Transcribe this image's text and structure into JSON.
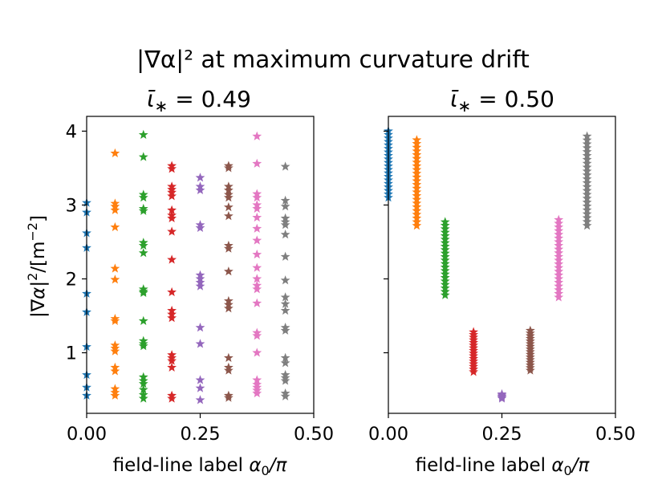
{
  "figure": {
    "suptitle": "|∇α|² at maximum curvature drift"
  },
  "chart_data": [
    {
      "type": "scatter",
      "marker": "star",
      "title": "ῑ* = 0.49",
      "title_parts": {
        "iota": "ῑ",
        "star": "∗",
        "rest": " = 0.49"
      },
      "xlabel": "field-line label α₀/π",
      "xlabel_parts": {
        "text": "field-line label ",
        "alpha": "α",
        "sub": "0",
        "tail": "/π"
      },
      "ylabel": "|∇α|²/[m⁻²]",
      "xlim": [
        0.0,
        0.5
      ],
      "ylim": [
        0.18,
        4.2
      ],
      "xticks": [
        0.0,
        0.25,
        0.5
      ],
      "xtick_labels": [
        "0.00",
        "0.25",
        "0.50"
      ],
      "yticks": [
        1,
        2,
        3,
        4
      ],
      "ytick_labels": [
        "1",
        "2",
        "3",
        "4"
      ],
      "show_yticklabels": true,
      "series": [
        {
          "name": "α₀/π = 0.0000",
          "color": "#1f77b4",
          "x": 0.0,
          "y": [
            3.03,
            2.9,
            2.62,
            2.42,
            1.8,
            1.55,
            1.08,
            0.7,
            0.53,
            0.42
          ]
        },
        {
          "name": "α₀/π = 0.0625",
          "color": "#ff7f0e",
          "x": 0.0625,
          "y": [
            3.7,
            3.02,
            2.98,
            2.93,
            2.7,
            2.14,
            1.99,
            1.46,
            1.43,
            1.1,
            1.06,
            1.02,
            0.8,
            0.75,
            0.51,
            0.46,
            0.42
          ]
        },
        {
          "name": "α₀/π = 0.1250",
          "color": "#2ca02c",
          "x": 0.125,
          "y": [
            3.95,
            3.65,
            3.14,
            3.1,
            2.95,
            2.92,
            2.49,
            2.45,
            2.35,
            1.86,
            1.83,
            1.81,
            1.43,
            1.16,
            1.12,
            1.09,
            0.67,
            0.62,
            0.58,
            0.5,
            0.43,
            0.38
          ]
        },
        {
          "name": "α₀/π = 0.1875",
          "color": "#d62728",
          "x": 0.1875,
          "y": [
            3.53,
            3.49,
            3.25,
            3.21,
            3.17,
            3.12,
            2.93,
            2.86,
            2.82,
            2.64,
            2.26,
            1.82,
            1.57,
            1.52,
            1.47,
            0.97,
            0.93,
            0.89,
            0.8,
            0.42,
            0.38
          ]
        },
        {
          "name": "α₀/π = 0.2500",
          "color": "#9467bd",
          "x": 0.25,
          "y": [
            3.37,
            3.25,
            3.2,
            2.73,
            2.69,
            2.05,
            2.0,
            1.95,
            1.9,
            1.34,
            1.12,
            0.63,
            0.52,
            0.36
          ]
        },
        {
          "name": "α₀/π = 0.3125",
          "color": "#8c564b",
          "x": 0.3125,
          "y": [
            3.53,
            3.5,
            3.25,
            3.2,
            3.14,
            3.1,
            2.97,
            2.85,
            2.45,
            2.41,
            2.1,
            1.7,
            1.65,
            1.6,
            0.93,
            0.8,
            0.76,
            0.42,
            0.39
          ]
        },
        {
          "name": "α₀/π = 0.3750",
          "color": "#e377c2",
          "x": 0.375,
          "y": [
            3.93,
            3.56,
            3.15,
            3.1,
            3.0,
            2.95,
            2.83,
            2.68,
            2.52,
            2.33,
            2.15,
            2.0,
            1.91,
            1.86,
            1.67,
            1.27,
            1.23,
            1.0,
            0.63,
            0.57,
            0.53,
            0.49,
            0.45
          ]
        },
        {
          "name": "α₀/π = 0.4375",
          "color": "#7f7f7f",
          "x": 0.4375,
          "y": [
            3.52,
            3.06,
            2.98,
            2.82,
            2.77,
            2.73,
            2.6,
            2.3,
            1.98,
            1.75,
            1.66,
            1.57,
            1.34,
            1.3,
            0.93,
            0.86,
            0.7,
            0.66,
            0.62,
            0.45,
            0.41
          ]
        }
      ]
    },
    {
      "type": "scatter",
      "marker": "star",
      "title": "ῑ* = 0.50",
      "title_parts": {
        "iota": "ῑ",
        "star": "∗",
        "rest": " = 0.50"
      },
      "xlabel": "field-line label α₀/π",
      "xlabel_parts": {
        "text": "field-line label ",
        "alpha": "α",
        "sub": "0",
        "tail": "/π"
      },
      "ylabel": "",
      "xlim": [
        0.0,
        0.5
      ],
      "ylim": [
        0.18,
        4.2
      ],
      "xticks": [
        0.0,
        0.25,
        0.5
      ],
      "xtick_labels": [
        "0.00",
        "0.25",
        "0.50"
      ],
      "yticks": [
        1,
        2,
        3,
        4
      ],
      "ytick_labels": [
        "1",
        "2",
        "3",
        "4"
      ],
      "show_yticklabels": false,
      "series": [
        {
          "name": "α₀/π = 0.0000",
          "color": "#1f77b4",
          "x": 0.0,
          "y_range": [
            3.1,
            4.0
          ],
          "count": 20
        },
        {
          "name": "α₀/π = 0.0625",
          "color": "#ff7f0e",
          "x": 0.0625,
          "y_range": [
            2.72,
            3.88
          ],
          "count": 24
        },
        {
          "name": "α₀/π = 0.1250",
          "color": "#2ca02c",
          "x": 0.125,
          "y_range": [
            1.78,
            2.77
          ],
          "count": 22
        },
        {
          "name": "α₀/π = 0.1875",
          "color": "#d62728",
          "x": 0.1875,
          "y_range": [
            0.74,
            1.28
          ],
          "count": 16
        },
        {
          "name": "α₀/π = 0.2500",
          "color": "#9467bd",
          "x": 0.25,
          "y_range": [
            0.38,
            0.44
          ],
          "count": 5
        },
        {
          "name": "α₀/π = 0.3125",
          "color": "#8c564b",
          "x": 0.3125,
          "y_range": [
            0.76,
            1.3
          ],
          "count": 16
        },
        {
          "name": "α₀/π = 0.3750",
          "color": "#e377c2",
          "x": 0.375,
          "y_range": [
            1.75,
            2.8
          ],
          "count": 22
        },
        {
          "name": "α₀/π = 0.4375",
          "color": "#7f7f7f",
          "x": 0.4375,
          "y_range": [
            2.72,
            3.93
          ],
          "count": 24
        }
      ]
    }
  ]
}
